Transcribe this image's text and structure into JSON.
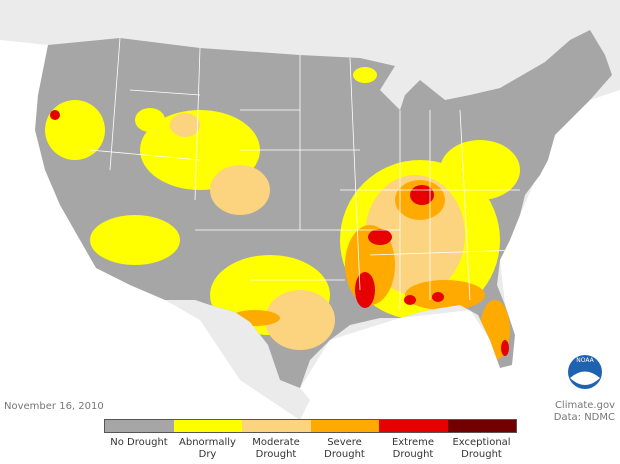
{
  "footer": {
    "date": "November 16, 2010",
    "source": "Climate.gov",
    "credit": "Data: NDMC"
  },
  "logo": "NOAA",
  "legend": {
    "items": [
      {
        "label": "No Drought",
        "color": "#a6a6a6"
      },
      {
        "label": "Abnormally Dry",
        "color": "#ffff00"
      },
      {
        "label": "Moderate Drought",
        "color": "#fcd37f"
      },
      {
        "label": "Severe Drought",
        "color": "#ffaa00"
      },
      {
        "label": "Extreme Drought",
        "color": "#e60000"
      },
      {
        "label": "Exceptional Drought",
        "color": "#730000"
      }
    ]
  }
}
